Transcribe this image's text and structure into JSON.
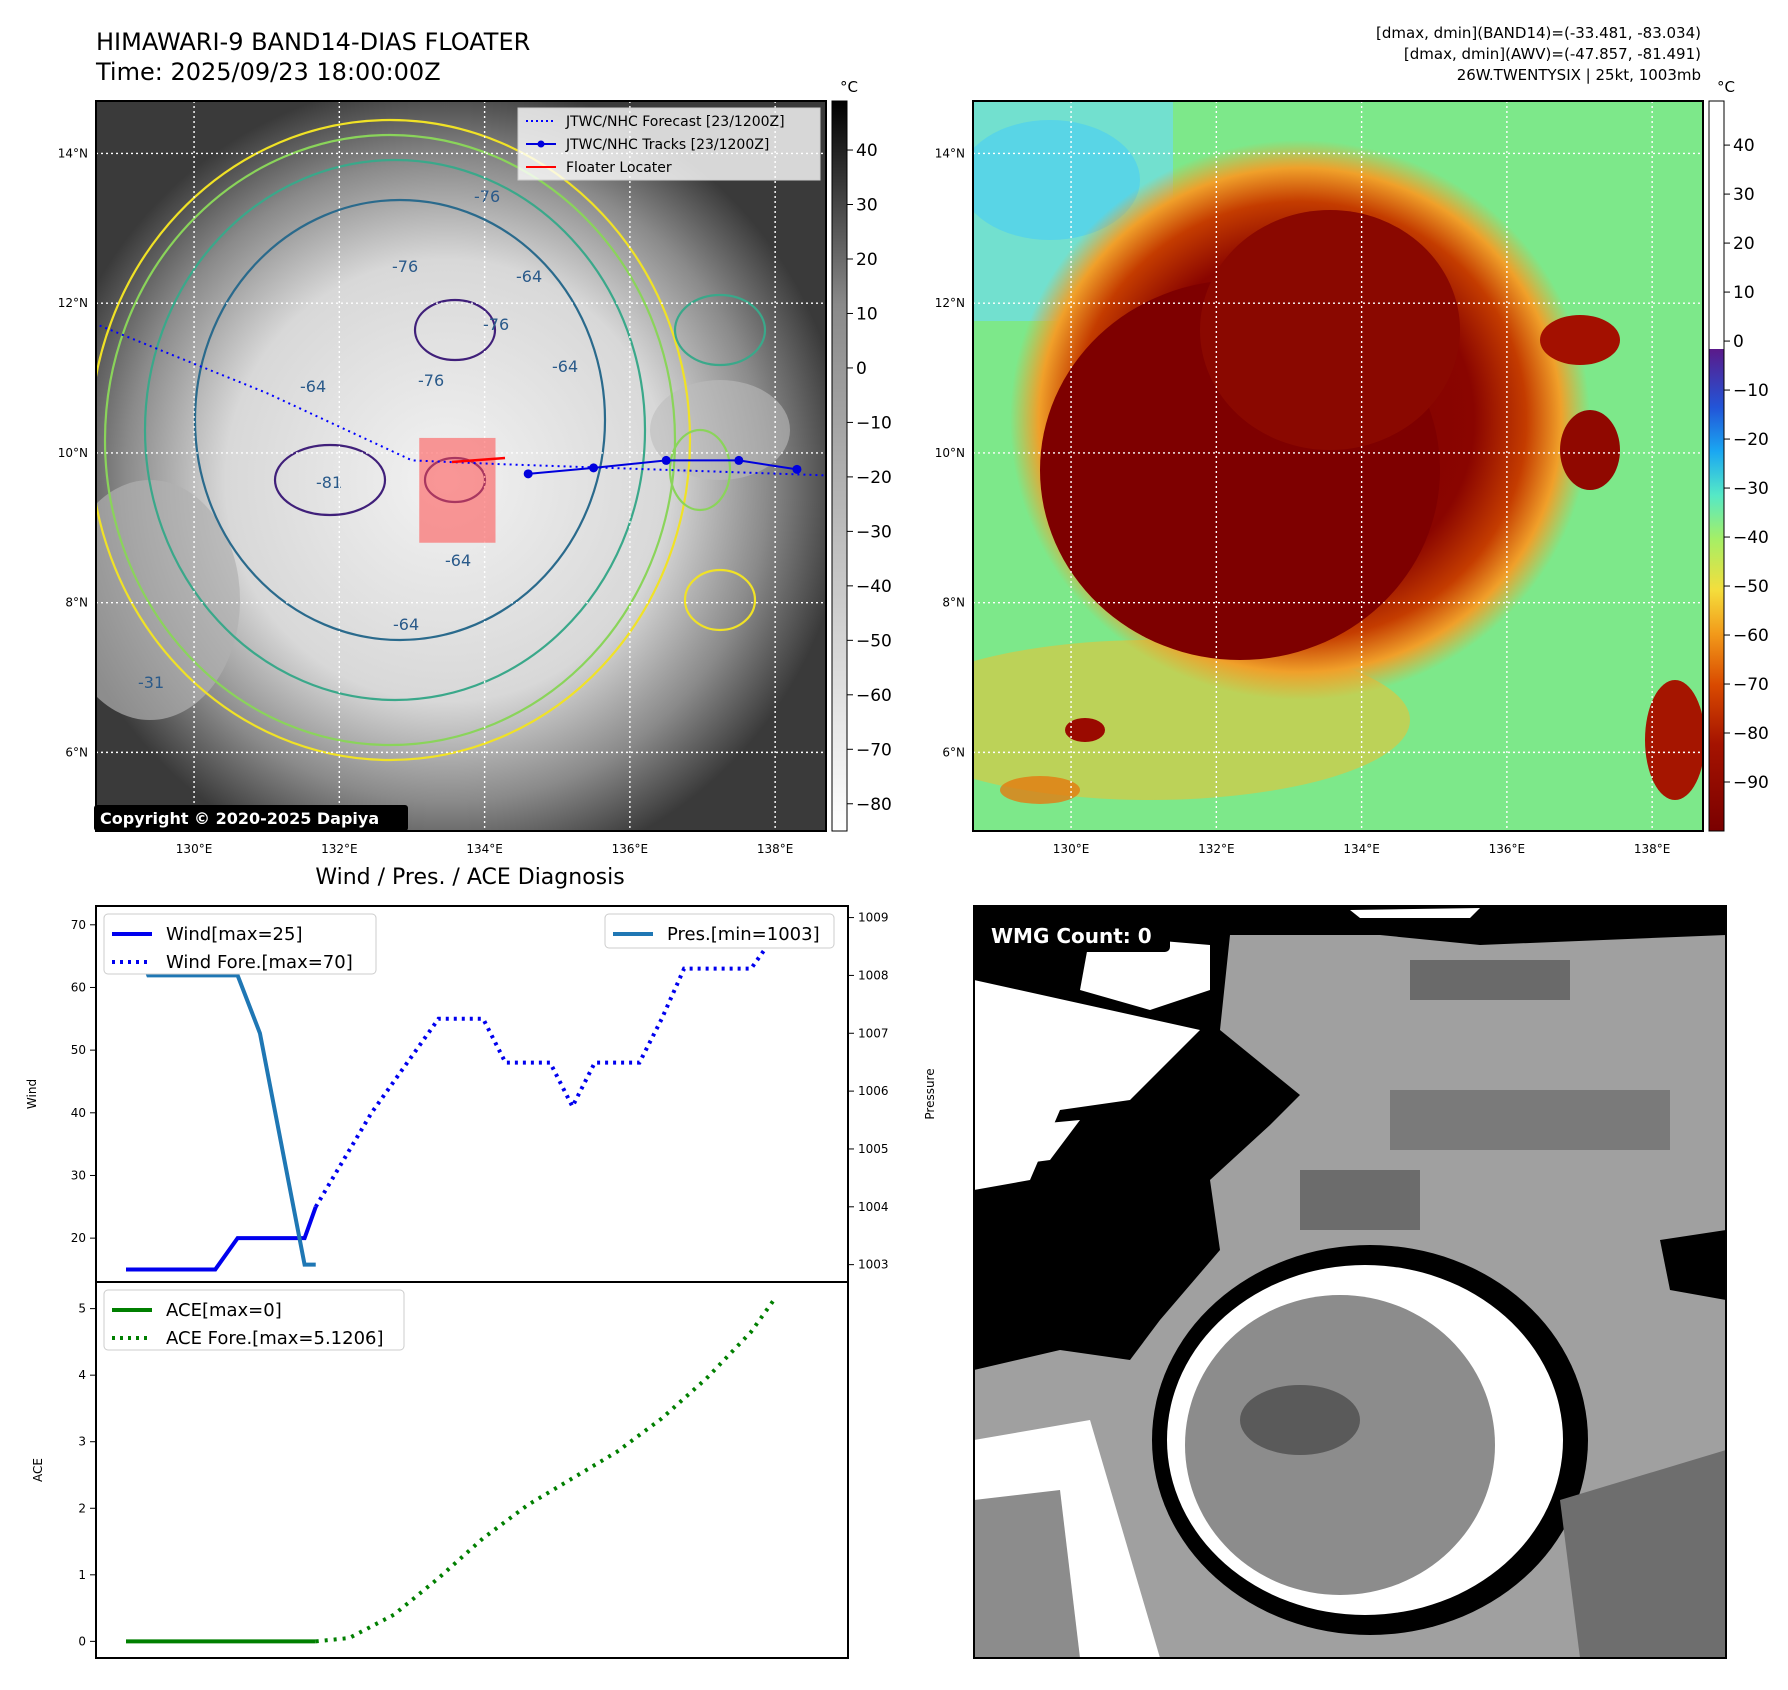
{
  "header": {
    "title": "HIMAWARI-9 BAND14-DIAS FLOATER",
    "time": "Time: 2025/09/23 18:00:00Z",
    "info_lines": [
      "[dmax, dmin](BAND14)=(-33.481, -83.034)",
      "[dmax, dmin](AWV)=(-47.857, -81.491)",
      "26W.TWENTYSIX | 25kt, 1003mb"
    ]
  },
  "copyright": "Copyright © 2020-2025 Dapiya",
  "colors": {
    "track": "#0000dd",
    "forecast": "#0000ff",
    "locater": "#ff0000",
    "wind": "#0000ee",
    "pressure": "#1f77b4",
    "ace": "#007f00",
    "cold_ir": "#800000",
    "warm_ir": "#7de88a"
  },
  "chart_data": [
    {
      "type": "heatmap",
      "name": "BAND14 IR (grayscale)",
      "xlabel": "",
      "ylabel": "",
      "x_ticks": [
        "130°E",
        "132°E",
        "134°E",
        "136°E",
        "138°E"
      ],
      "y_ticks": [
        "14°N",
        "12°N",
        "10°N",
        "8°N",
        "6°N"
      ],
      "xlim": [
        128.65,
        138.7
      ],
      "ylim": [
        4.95,
        14.7
      ],
      "colorbar": {
        "unit": "°C",
        "ticks": [
          40,
          30,
          20,
          10,
          0,
          -10,
          -20,
          -30,
          -40,
          -50,
          -60,
          -70,
          -80
        ],
        "range": [
          -85,
          49
        ]
      },
      "contour_labels": [
        "-76",
        "-76",
        "-64",
        "-76",
        "-64",
        "-76",
        "-64",
        "-81",
        "-64",
        "-64",
        "-31"
      ],
      "legend": {
        "position": "top-right",
        "entries": [
          "JTWC/NHC Forecast [23/1200Z]",
          "JTWC/NHC Tracks [23/1200Z]",
          "Floater Locater"
        ]
      },
      "track": {
        "lon": [
          134.6,
          135.5,
          136.5,
          137.5,
          138.3
        ],
        "lat": [
          9.72,
          9.8,
          9.9,
          9.9,
          9.78
        ]
      },
      "forecast_track": {
        "lon": [
          128.7,
          131.0,
          133.0,
          134.2,
          138.7
        ],
        "lat": [
          11.7,
          10.8,
          9.9,
          9.85,
          9.7
        ]
      },
      "floater_box": {
        "lon": [
          133.1,
          134.15
        ],
        "lat": [
          8.8,
          10.2
        ]
      }
    },
    {
      "type": "heatmap",
      "name": "AWV enhanced IR",
      "xlabel": "",
      "ylabel": "",
      "x_ticks": [
        "130°E",
        "132°E",
        "134°E",
        "136°E",
        "138°E"
      ],
      "y_ticks": [
        "14°N",
        "12°N",
        "10°N",
        "8°N",
        "6°N"
      ],
      "xlim": [
        128.65,
        138.7
      ],
      "ylim": [
        4.95,
        14.7
      ],
      "colorbar": {
        "unit": "°C",
        "ticks": [
          40,
          30,
          20,
          10,
          0,
          -10,
          -20,
          -30,
          -40,
          -50,
          -60,
          -70,
          -80,
          -90
        ],
        "range": [
          -100,
          49
        ]
      }
    },
    {
      "type": "line",
      "title": "Wind / Pres. / ACE Diagnosis",
      "xlabel": "",
      "ylabel": "Wind",
      "ylabel_right": "Pressure",
      "ylim": [
        13,
        73
      ],
      "ylim_right": [
        1002.7,
        1009.2
      ],
      "y_ticks": [
        20,
        30,
        40,
        50,
        60,
        70
      ],
      "y_ticks_right": [
        1003,
        1004,
        1005,
        1006,
        1007,
        1008,
        1009
      ],
      "legend_left": [
        "Wind[max=25]",
        "Wind Fore.[max=70]"
      ],
      "legend_right": [
        "Pres.[min=1003]"
      ],
      "x": [
        0,
        1,
        2,
        3,
        4,
        5,
        6,
        7,
        8,
        9,
        10,
        11,
        12,
        13,
        14,
        15,
        16,
        17,
        18,
        19,
        20,
        21,
        22,
        23,
        24,
        25,
        26,
        27,
        28,
        29,
        30,
        31
      ],
      "series": [
        {
          "name": "Wind[max=25]",
          "style": "solid",
          "x": [
            0,
            4,
            5,
            7,
            8,
            8.5
          ],
          "values": [
            15,
            15,
            20,
            20,
            20,
            25
          ]
        },
        {
          "name": "Wind Fore.[max=70]",
          "style": "dotted",
          "x": [
            8.5,
            11,
            13,
            14,
            15,
            16,
            17,
            18,
            19,
            20,
            21,
            22,
            23,
            24,
            25,
            26,
            27,
            28,
            29
          ],
          "values": [
            25,
            40,
            50,
            55,
            55,
            55,
            48,
            48,
            48,
            41,
            48,
            48,
            48,
            55,
            63,
            63,
            63,
            63,
            68
          ]
        },
        {
          "name": "Pres.[min=1003]",
          "style": "solid",
          "axis": "right",
          "x": [
            0,
            1,
            2,
            3,
            4,
            5,
            6,
            7,
            8,
            8.5
          ],
          "values": [
            1009,
            1008,
            1008,
            1008,
            1008,
            1008,
            1007,
            1005,
            1003,
            1003
          ]
        }
      ]
    },
    {
      "type": "line",
      "xlabel": "",
      "ylabel": "ACE",
      "ylim": [
        -0.25,
        5.4
      ],
      "y_ticks": [
        0,
        1,
        2,
        3,
        4,
        5
      ],
      "legend": [
        "ACE[max=0]",
        "ACE Fore.[max=5.1206]"
      ],
      "series": [
        {
          "name": "ACE[max=0]",
          "style": "solid",
          "x": [
            0,
            8.5
          ],
          "values": [
            0,
            0
          ]
        },
        {
          "name": "ACE Fore.[max=5.1206]",
          "style": "dotted",
          "x": [
            8.5,
            10,
            12,
            14,
            16,
            18,
            20,
            22,
            24,
            26,
            28,
            29
          ],
          "values": [
            0,
            0.05,
            0.4,
            0.95,
            1.55,
            2.05,
            2.45,
            2.85,
            3.35,
            3.95,
            4.65,
            5.12
          ]
        }
      ]
    },
    {
      "type": "heatmap",
      "name": "WMG classification",
      "label": "WMG Count: 0",
      "levels": [
        "black",
        "white",
        "light-gray",
        "mid-gray",
        "dark-gray"
      ]
    }
  ]
}
